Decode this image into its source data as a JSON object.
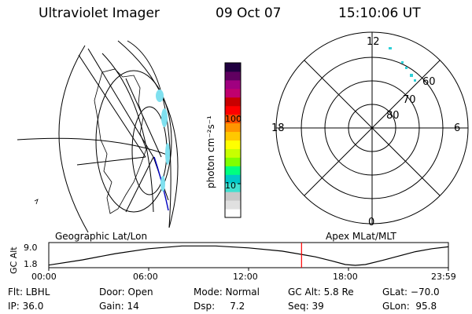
{
  "header": {
    "title": "Ultraviolet Imager",
    "date": "09 Oct 07",
    "time": "15:10:06 UT"
  },
  "colorbar": {
    "label": "photon cm⁻²s⁻¹",
    "ticks": [
      "100",
      "10"
    ],
    "scale": "log",
    "colors": [
      "#ffffff",
      "#e0e0e0",
      "#c8c8c8",
      "#40e0d0",
      "#00c8c8",
      "#00ff80",
      "#80ff00",
      "#c8ff00",
      "#ffff00",
      "#ffc800",
      "#ff9600",
      "#ff5000",
      "#ff0000",
      "#c80000",
      "#c0006e",
      "#a00080",
      "#600060",
      "#200040"
    ]
  },
  "left_panel": {
    "label": "Geographic Lat/Lon"
  },
  "right_panel": {
    "label": "Apex MLat/MLT",
    "mlt_labels": {
      "top": "12",
      "left": "18",
      "right": "6",
      "bottom": "0"
    },
    "lat_labels": [
      "60",
      "70",
      "80"
    ]
  },
  "chart_data": {
    "type": "line",
    "title": "",
    "ylabel": "GC Alt",
    "yticks": [
      "9.0",
      "1.8"
    ],
    "ylim": [
      1.8,
      9.0
    ],
    "xticks": [
      "00:00",
      "06:00",
      "12:00",
      "18:00",
      "23:59"
    ],
    "xlim_hours": [
      0,
      23.983
    ],
    "series": [
      {
        "values": [
          [
            0.0,
            1.9
          ],
          [
            2.0,
            3.8
          ],
          [
            4.0,
            6.1
          ],
          [
            6.0,
            7.9
          ],
          [
            8.0,
            8.9
          ],
          [
            10.0,
            8.9
          ],
          [
            12.0,
            8.2
          ],
          [
            14.0,
            7.0
          ],
          [
            15.17,
            5.8
          ],
          [
            16.0,
            4.9
          ],
          [
            17.0,
            3.4
          ],
          [
            17.8,
            2.1
          ],
          [
            18.4,
            1.8
          ],
          [
            19.0,
            2.1
          ],
          [
            20.0,
            3.6
          ],
          [
            21.0,
            5.2
          ],
          [
            22.0,
            6.8
          ],
          [
            23.0,
            7.9
          ],
          [
            23.98,
            8.6
          ]
        ]
      }
    ],
    "marker_hour": 15.17,
    "marker_color": "#ff0000"
  },
  "footer": {
    "row1": {
      "flt": "Flt: LBHL",
      "door": "Door: Open",
      "mode": "Mode: Normal",
      "gcalt": "GC Alt: 5.8 Re",
      "glat": "GLat: −70.0"
    },
    "row2": {
      "ip": "IP: 36.0",
      "gain": "Gain: 14",
      "dsp": "Dsp:     7.2",
      "seq": "Seq: 39",
      "glon": "GLon:  95.8"
    }
  }
}
